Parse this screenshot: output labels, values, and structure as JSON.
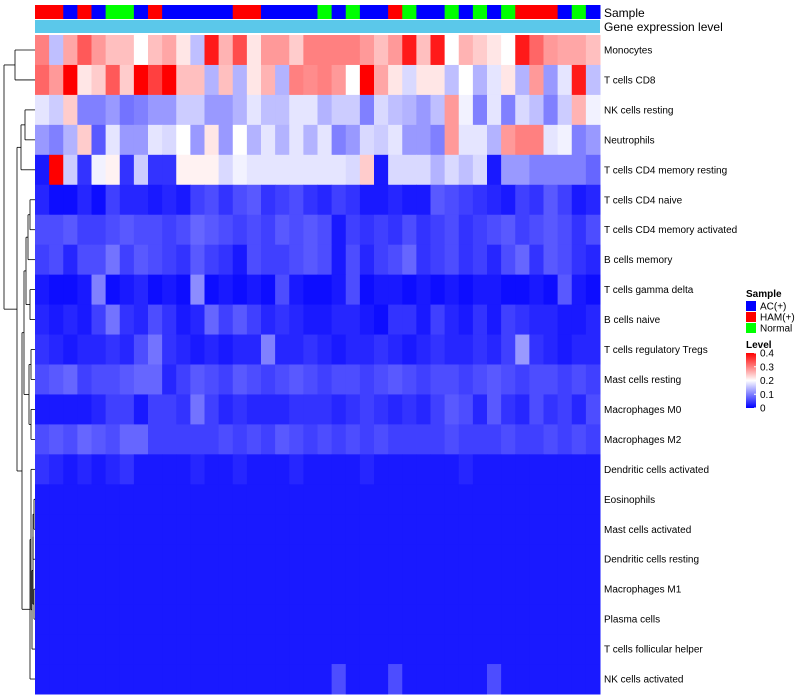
{
  "chart_data": {
    "type": "heatmap",
    "annotations": {
      "sample_label": "Sample",
      "gene_label": "Gene expression level"
    },
    "rows": [
      "Monocytes",
      "T cells CD8",
      "NK cells resting",
      "Neutrophils",
      "T cells CD4 memory resting",
      "T cells CD4 naive",
      "T cells CD4 memory activated",
      "B cells memory",
      "T cells gamma delta",
      "B cells naive",
      "T cells regulatory  Tregs",
      "Mast cells resting",
      "Macrophages M0",
      "Macrophages M2",
      "Dendritic cells activated",
      "Eosinophils",
      "Mast cells activated",
      "Dendritic cells resting",
      "Macrophages M1",
      "Plasma cells",
      "T cells follicular helper",
      "NK cells activated"
    ],
    "sample_groups": [
      "H",
      "H",
      "A",
      "H",
      "A",
      "N",
      "N",
      "A",
      "H",
      "A",
      "A",
      "A",
      "A",
      "A",
      "H",
      "H",
      "A",
      "A",
      "A",
      "A",
      "N",
      "A",
      "N",
      "A",
      "A",
      "H",
      "N",
      "A",
      "A",
      "N",
      "A",
      "N",
      "A",
      "N",
      "H",
      "H",
      "H",
      "A",
      "N",
      "A"
    ],
    "values": [
      [
        0.3,
        0.15,
        0.27,
        0.33,
        0.28,
        0.25,
        0.25,
        0.2,
        0.25,
        0.27,
        0.22,
        0.15,
        0.38,
        0.26,
        0.34,
        0.22,
        0.28,
        0.28,
        0.24,
        0.3,
        0.3,
        0.3,
        0.3,
        0.28,
        0.25,
        0.28,
        0.38,
        0.25,
        0.38,
        0.2,
        0.26,
        0.24,
        0.22,
        0.2,
        0.38,
        0.32,
        0.28,
        0.27,
        0.27,
        0.25
      ],
      [
        0.32,
        0.28,
        0.4,
        0.22,
        0.24,
        0.33,
        0.24,
        0.4,
        0.35,
        0.4,
        0.25,
        0.25,
        0.14,
        0.25,
        0.14,
        0.22,
        0.26,
        0.14,
        0.3,
        0.29,
        0.3,
        0.28,
        0.2,
        0.4,
        0.27,
        0.22,
        0.17,
        0.22,
        0.22,
        0.15,
        0.2,
        0.14,
        0.18,
        0.22,
        0.14,
        0.28,
        0.12,
        0.18,
        0.38,
        0.15
      ],
      [
        0.18,
        0.16,
        0.24,
        0.1,
        0.1,
        0.12,
        0.09,
        0.1,
        0.12,
        0.12,
        0.16,
        0.16,
        0.12,
        0.12,
        0.14,
        0.18,
        0.15,
        0.15,
        0.18,
        0.18,
        0.14,
        0.16,
        0.16,
        0.1,
        0.17,
        0.15,
        0.14,
        0.12,
        0.15,
        0.28,
        0.19,
        0.1,
        0.18,
        0.1,
        0.17,
        0.15,
        0.1,
        0.16,
        0.26,
        0.19
      ],
      [
        0.12,
        0.1,
        0.14,
        0.24,
        0.07,
        0.18,
        0.12,
        0.12,
        0.18,
        0.17,
        0.2,
        0.12,
        0.22,
        0.12,
        0.2,
        0.14,
        0.18,
        0.14,
        0.18,
        0.14,
        0.18,
        0.1,
        0.12,
        0.17,
        0.16,
        0.18,
        0.12,
        0.12,
        0.1,
        0.28,
        0.18,
        0.18,
        0.14,
        0.28,
        0.3,
        0.3,
        0.18,
        0.19,
        0.1,
        0.12
      ],
      [
        0.02,
        0.4,
        0.16,
        0.04,
        0.19,
        0.21,
        0.04,
        0.16,
        0.04,
        0.04,
        0.21,
        0.21,
        0.21,
        0.17,
        0.19,
        0.18,
        0.18,
        0.18,
        0.18,
        0.18,
        0.18,
        0.18,
        0.17,
        0.24,
        0.02,
        0.17,
        0.17,
        0.17,
        0.14,
        0.17,
        0.15,
        0.17,
        0.02,
        0.12,
        0.12,
        0.1,
        0.1,
        0.1,
        0.1,
        0.08
      ],
      [
        0.03,
        0.01,
        0.01,
        0.03,
        0.01,
        0.05,
        0.03,
        0.03,
        0.02,
        0.03,
        0.02,
        0.05,
        0.06,
        0.04,
        0.06,
        0.07,
        0.04,
        0.05,
        0.06,
        0.04,
        0.03,
        0.05,
        0.04,
        0.02,
        0.02,
        0.03,
        0.02,
        0.02,
        0.07,
        0.06,
        0.05,
        0.04,
        0.03,
        0.02,
        0.05,
        0.04,
        0.07,
        0.05,
        0.02,
        0.03
      ],
      [
        0.06,
        0.06,
        0.07,
        0.05,
        0.05,
        0.06,
        0.07,
        0.06,
        0.06,
        0.05,
        0.06,
        0.08,
        0.07,
        0.06,
        0.05,
        0.06,
        0.05,
        0.07,
        0.06,
        0.07,
        0.06,
        0.02,
        0.05,
        0.04,
        0.05,
        0.04,
        0.06,
        0.04,
        0.05,
        0.06,
        0.04,
        0.05,
        0.06,
        0.07,
        0.05,
        0.06,
        0.07,
        0.06,
        0.04,
        0.06
      ],
      [
        0.05,
        0.06,
        0.03,
        0.06,
        0.06,
        0.09,
        0.05,
        0.07,
        0.06,
        0.05,
        0.04,
        0.07,
        0.05,
        0.04,
        0.02,
        0.06,
        0.05,
        0.05,
        0.06,
        0.07,
        0.06,
        0.02,
        0.06,
        0.03,
        0.05,
        0.06,
        0.08,
        0.04,
        0.05,
        0.06,
        0.04,
        0.05,
        0.03,
        0.06,
        0.08,
        0.04,
        0.07,
        0.06,
        0.04,
        0.03
      ],
      [
        0.02,
        0.01,
        0.01,
        0.02,
        0.1,
        0.01,
        0.02,
        0.03,
        0.01,
        0.02,
        0.01,
        0.11,
        0.01,
        0.02,
        0.01,
        0.02,
        0.01,
        0.06,
        0.02,
        0.01,
        0.01,
        0.02,
        0.06,
        0.01,
        0.02,
        0.02,
        0.01,
        0.02,
        0.01,
        0.02,
        0.01,
        0.02,
        0.02,
        0.01,
        0.01,
        0.02,
        0.01,
        0.07,
        0.02,
        0.01
      ],
      [
        0.03,
        0.02,
        0.03,
        0.02,
        0.05,
        0.09,
        0.04,
        0.03,
        0.06,
        0.04,
        0.02,
        0.03,
        0.08,
        0.05,
        0.07,
        0.05,
        0.03,
        0.04,
        0.03,
        0.02,
        0.02,
        0.03,
        0.03,
        0.02,
        0.01,
        0.04,
        0.04,
        0.02,
        0.05,
        0.03,
        0.02,
        0.04,
        0.02,
        0.05,
        0.04,
        0.03,
        0.03,
        0.02,
        0.02,
        0.03
      ],
      [
        0.04,
        0.03,
        0.02,
        0.03,
        0.03,
        0.04,
        0.03,
        0.06,
        0.09,
        0.04,
        0.03,
        0.02,
        0.03,
        0.02,
        0.03,
        0.03,
        0.1,
        0.03,
        0.03,
        0.04,
        0.03,
        0.02,
        0.03,
        0.03,
        0.04,
        0.03,
        0.02,
        0.03,
        0.04,
        0.03,
        0.03,
        0.04,
        0.03,
        0.05,
        0.12,
        0.04,
        0.03,
        0.02,
        0.03,
        0.03
      ],
      [
        0.06,
        0.07,
        0.08,
        0.05,
        0.06,
        0.06,
        0.07,
        0.08,
        0.08,
        0.03,
        0.05,
        0.07,
        0.06,
        0.05,
        0.07,
        0.06,
        0.05,
        0.06,
        0.07,
        0.06,
        0.05,
        0.06,
        0.06,
        0.05,
        0.06,
        0.07,
        0.06,
        0.05,
        0.06,
        0.06,
        0.05,
        0.06,
        0.07,
        0.06,
        0.05,
        0.06,
        0.06,
        0.05,
        0.06,
        0.05
      ],
      [
        0.02,
        0.02,
        0.02,
        0.02,
        0.03,
        0.05,
        0.05,
        0.02,
        0.05,
        0.05,
        0.04,
        0.09,
        0.05,
        0.03,
        0.04,
        0.03,
        0.03,
        0.03,
        0.04,
        0.04,
        0.04,
        0.03,
        0.04,
        0.05,
        0.04,
        0.03,
        0.04,
        0.03,
        0.05,
        0.07,
        0.06,
        0.03,
        0.07,
        0.04,
        0.03,
        0.06,
        0.04,
        0.05,
        0.03,
        0.06
      ],
      [
        0.06,
        0.07,
        0.06,
        0.08,
        0.07,
        0.06,
        0.08,
        0.08,
        0.05,
        0.05,
        0.05,
        0.05,
        0.05,
        0.06,
        0.05,
        0.06,
        0.05,
        0.07,
        0.06,
        0.05,
        0.06,
        0.05,
        0.06,
        0.05,
        0.06,
        0.05,
        0.05,
        0.05,
        0.05,
        0.06,
        0.05,
        0.05,
        0.05,
        0.06,
        0.05,
        0.05,
        0.06,
        0.05,
        0.06,
        0.05
      ],
      [
        0.04,
        0.03,
        0.02,
        0.03,
        0.02,
        0.03,
        0.04,
        0.02,
        0.02,
        0.02,
        0.02,
        0.03,
        0.02,
        0.02,
        0.03,
        0.02,
        0.02,
        0.02,
        0.03,
        0.02,
        0.02,
        0.02,
        0.02,
        0.03,
        0.02,
        0.02,
        0.02,
        0.02,
        0.02,
        0.02,
        0.03,
        0.02,
        0.02,
        0.02,
        0.02,
        0.02,
        0.02,
        0.02,
        0.02,
        0.02
      ],
      [
        0.02,
        0.02,
        0.02,
        0.02,
        0.02,
        0.02,
        0.02,
        0.02,
        0.02,
        0.02,
        0.02,
        0.02,
        0.02,
        0.02,
        0.02,
        0.02,
        0.02,
        0.02,
        0.02,
        0.02,
        0.02,
        0.02,
        0.02,
        0.02,
        0.02,
        0.02,
        0.02,
        0.02,
        0.02,
        0.02,
        0.02,
        0.02,
        0.02,
        0.02,
        0.02,
        0.02,
        0.02,
        0.02,
        0.02,
        0.02
      ],
      [
        0.02,
        0.02,
        0.02,
        0.02,
        0.02,
        0.02,
        0.02,
        0.02,
        0.02,
        0.02,
        0.02,
        0.02,
        0.02,
        0.02,
        0.02,
        0.02,
        0.02,
        0.02,
        0.02,
        0.02,
        0.02,
        0.02,
        0.02,
        0.02,
        0.02,
        0.02,
        0.02,
        0.02,
        0.02,
        0.02,
        0.02,
        0.02,
        0.02,
        0.02,
        0.02,
        0.02,
        0.02,
        0.02,
        0.02,
        0.02
      ],
      [
        0.02,
        0.02,
        0.02,
        0.02,
        0.02,
        0.02,
        0.02,
        0.02,
        0.02,
        0.02,
        0.02,
        0.02,
        0.02,
        0.02,
        0.02,
        0.02,
        0.02,
        0.02,
        0.02,
        0.02,
        0.02,
        0.02,
        0.02,
        0.02,
        0.02,
        0.02,
        0.02,
        0.02,
        0.02,
        0.02,
        0.02,
        0.02,
        0.02,
        0.02,
        0.02,
        0.02,
        0.02,
        0.02,
        0.02,
        0.02
      ],
      [
        0.02,
        0.02,
        0.02,
        0.02,
        0.02,
        0.02,
        0.02,
        0.02,
        0.02,
        0.02,
        0.02,
        0.02,
        0.02,
        0.02,
        0.02,
        0.02,
        0.02,
        0.02,
        0.02,
        0.02,
        0.02,
        0.02,
        0.02,
        0.02,
        0.02,
        0.02,
        0.02,
        0.02,
        0.02,
        0.02,
        0.02,
        0.02,
        0.02,
        0.02,
        0.02,
        0.02,
        0.02,
        0.02,
        0.02,
        0.02
      ],
      [
        0.02,
        0.02,
        0.02,
        0.02,
        0.02,
        0.02,
        0.02,
        0.02,
        0.02,
        0.02,
        0.02,
        0.02,
        0.02,
        0.02,
        0.02,
        0.02,
        0.02,
        0.02,
        0.02,
        0.02,
        0.02,
        0.02,
        0.02,
        0.02,
        0.02,
        0.02,
        0.02,
        0.02,
        0.02,
        0.02,
        0.02,
        0.02,
        0.02,
        0.02,
        0.02,
        0.02,
        0.02,
        0.02,
        0.02,
        0.02
      ],
      [
        0.02,
        0.02,
        0.02,
        0.02,
        0.02,
        0.02,
        0.02,
        0.02,
        0.02,
        0.02,
        0.02,
        0.02,
        0.02,
        0.02,
        0.02,
        0.02,
        0.02,
        0.02,
        0.02,
        0.02,
        0.02,
        0.02,
        0.02,
        0.02,
        0.02,
        0.02,
        0.02,
        0.02,
        0.02,
        0.02,
        0.02,
        0.02,
        0.02,
        0.02,
        0.02,
        0.02,
        0.02,
        0.02,
        0.02,
        0.02
      ],
      [
        0.02,
        0.02,
        0.02,
        0.02,
        0.02,
        0.02,
        0.02,
        0.02,
        0.02,
        0.02,
        0.02,
        0.02,
        0.02,
        0.02,
        0.02,
        0.02,
        0.02,
        0.02,
        0.02,
        0.02,
        0.02,
        0.06,
        0.02,
        0.02,
        0.02,
        0.06,
        0.02,
        0.02,
        0.02,
        0.02,
        0.02,
        0.02,
        0.06,
        0.02,
        0.02,
        0.02,
        0.02,
        0.02,
        0.02,
        0.02
      ]
    ],
    "legend": {
      "sample_title": "Sample",
      "groups": [
        {
          "key": "A",
          "label": "AC(+)",
          "color": "#0000ff"
        },
        {
          "key": "H",
          "label": "HAM(+)",
          "color": "#ff0000"
        },
        {
          "key": "N",
          "label": "Normal",
          "color": "#00ff00"
        }
      ],
      "level_title": "Level",
      "level_ticks": [
        {
          "value": 0.4,
          "label": "0.4"
        },
        {
          "value": 0.3,
          "label": "0.3"
        },
        {
          "value": 0.2,
          "label": "0.2"
        },
        {
          "value": 0.1,
          "label": "0.1"
        },
        {
          "value": 0,
          "label": "0"
        }
      ],
      "level_range": [
        0,
        0.4
      ]
    },
    "colors": {
      "low": "#0000ff",
      "mid": "#ffffff",
      "high": "#ff0000",
      "gene_bar": "#5bc8ea"
    }
  }
}
